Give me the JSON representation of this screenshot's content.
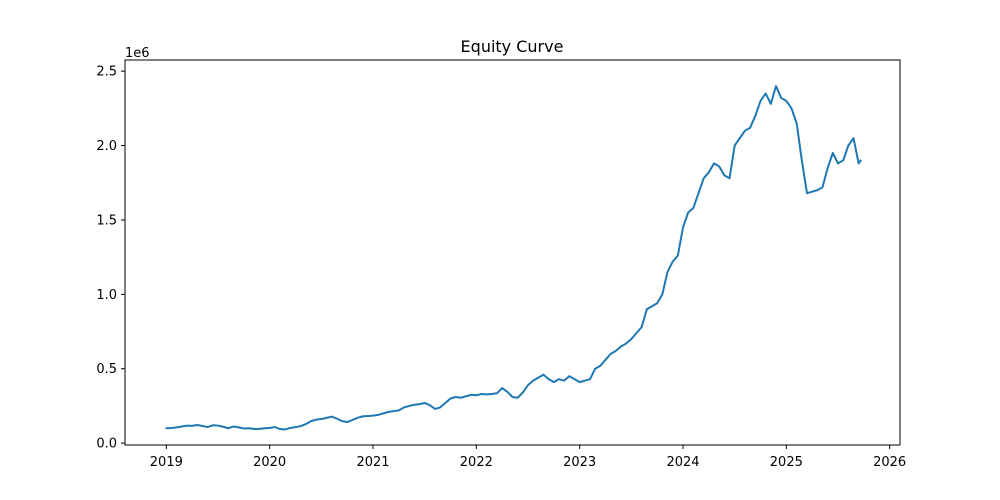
{
  "chart_data": {
    "type": "line",
    "title": "Equity Curve",
    "xlabel": "",
    "ylabel": "",
    "y_offset_label": "1e6",
    "xlim": [
      2018.6,
      2026.1
    ],
    "ylim": [
      -0.0125,
      2.575
    ],
    "x_ticks": [
      2019,
      2020,
      2021,
      2022,
      2023,
      2024,
      2025,
      2026
    ],
    "x_tick_labels": [
      "2019",
      "2020",
      "2021",
      "2022",
      "2023",
      "2024",
      "2025",
      "2026"
    ],
    "y_ticks": [
      0.0,
      0.5,
      1.0,
      1.5,
      2.0,
      2.5
    ],
    "y_tick_labels": [
      "0.0",
      "0.5",
      "1.0",
      "1.5",
      "2.0",
      "2.5"
    ],
    "grid": false,
    "color": "#1f77b4",
    "series": [
      {
        "x": [
          2019.0,
          2019.05,
          2019.1,
          2019.15,
          2019.2,
          2019.25,
          2019.3,
          2019.35,
          2019.4,
          2019.45,
          2019.5,
          2019.55,
          2019.6,
          2019.65,
          2019.7,
          2019.75,
          2019.8,
          2019.85,
          2019.9,
          2019.95,
          2020.0,
          2020.05,
          2020.1,
          2020.15,
          2020.2,
          2020.25,
          2020.3,
          2020.35,
          2020.4,
          2020.45,
          2020.5,
          2020.55,
          2020.6,
          2020.65,
          2020.7,
          2020.75,
          2020.8,
          2020.85,
          2020.9,
          2020.95,
          2021.0,
          2021.05,
          2021.1,
          2021.15,
          2021.2,
          2021.25,
          2021.3,
          2021.35,
          2021.4,
          2021.45,
          2021.5,
          2021.55,
          2021.6,
          2021.65,
          2021.7,
          2021.75,
          2021.8,
          2021.85,
          2021.9,
          2021.95,
          2022.0,
          2022.05,
          2022.1,
          2022.15,
          2022.2,
          2022.25,
          2022.3,
          2022.35,
          2022.4,
          2022.45,
          2022.5,
          2022.55,
          2022.6,
          2022.65,
          2022.7,
          2022.75,
          2022.8,
          2022.85,
          2022.9,
          2022.95,
          2023.0,
          2023.05,
          2023.1,
          2023.15,
          2023.2,
          2023.25,
          2023.3,
          2023.35,
          2023.4,
          2023.45,
          2023.5,
          2023.55,
          2023.6,
          2023.65,
          2023.7,
          2023.75,
          2023.8,
          2023.85,
          2023.9,
          2023.95,
          2024.0,
          2024.05,
          2024.1,
          2024.15,
          2024.2,
          2024.25,
          2024.3,
          2024.35,
          2024.4,
          2024.45,
          2024.5,
          2024.55,
          2024.6,
          2024.65,
          2024.7,
          2024.75,
          2024.8,
          2024.85,
          2024.9,
          2024.95,
          2025.0,
          2025.05,
          2025.1,
          2025.15,
          2025.2,
          2025.25,
          2025.3,
          2025.35,
          2025.4,
          2025.45,
          2025.5,
          2025.55,
          2025.6,
          2025.65,
          2025.7,
          2025.72
        ],
        "y": [
          0.1,
          0.102,
          0.106,
          0.112,
          0.118,
          0.116,
          0.122,
          0.115,
          0.108,
          0.12,
          0.118,
          0.11,
          0.1,
          0.112,
          0.106,
          0.098,
          0.1,
          0.095,
          0.096,
          0.1,
          0.102,
          0.108,
          0.095,
          0.092,
          0.102,
          0.108,
          0.114,
          0.128,
          0.148,
          0.158,
          0.162,
          0.17,
          0.178,
          0.165,
          0.148,
          0.142,
          0.155,
          0.17,
          0.18,
          0.182,
          0.185,
          0.19,
          0.2,
          0.21,
          0.215,
          0.22,
          0.24,
          0.25,
          0.258,
          0.262,
          0.27,
          0.255,
          0.23,
          0.24,
          0.27,
          0.3,
          0.31,
          0.305,
          0.315,
          0.325,
          0.322,
          0.33,
          0.328,
          0.33,
          0.335,
          0.37,
          0.345,
          0.31,
          0.305,
          0.34,
          0.39,
          0.42,
          0.44,
          0.46,
          0.43,
          0.41,
          0.43,
          0.42,
          0.45,
          0.43,
          0.41,
          0.42,
          0.43,
          0.5,
          0.52,
          0.56,
          0.6,
          0.62,
          0.65,
          0.67,
          0.7,
          0.74,
          0.78,
          0.9,
          0.92,
          0.94,
          1.0,
          1.15,
          1.22,
          1.26,
          1.45,
          1.55,
          1.58,
          1.68,
          1.78,
          1.82,
          1.88,
          1.86,
          1.8,
          1.78,
          2.0,
          2.05,
          2.1,
          2.12,
          2.2,
          2.3,
          2.35,
          2.28,
          2.4,
          2.32,
          2.3,
          2.25,
          2.15,
          1.9,
          1.68,
          1.69,
          1.7,
          1.72,
          1.85,
          1.95,
          1.88,
          1.9,
          2.0,
          2.05,
          1.88,
          1.9
        ]
      }
    ]
  }
}
